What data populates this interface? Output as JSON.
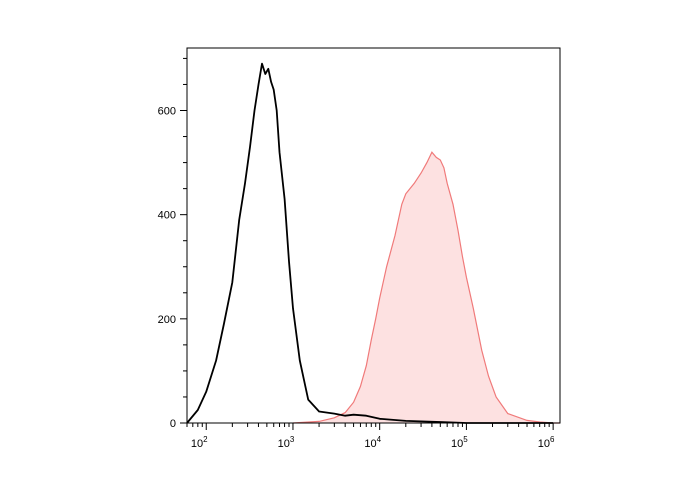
{
  "chart_data": {
    "type": "area",
    "title": "",
    "xlabel": "",
    "ylabel": "",
    "xscale": "log",
    "xlim": [
      60,
      1200000
    ],
    "ylim": [
      0,
      720
    ],
    "grid": false,
    "x_ticks": [
      {
        "value": 100,
        "base": "10",
        "exp": "2"
      },
      {
        "value": 1000,
        "base": "10",
        "exp": "3"
      },
      {
        "value": 10000,
        "base": "10",
        "exp": "4"
      },
      {
        "value": 100000,
        "base": "10",
        "exp": "5"
      },
      {
        "value": 1000000,
        "base": "10",
        "exp": "6"
      }
    ],
    "y_ticks": [
      {
        "value": 0,
        "label": "0"
      },
      {
        "value": 200,
        "label": "200"
      },
      {
        "value": 400,
        "label": "400"
      },
      {
        "value": 600,
        "label": "600"
      }
    ],
    "series": [
      {
        "style": "line",
        "color": "#000000",
        "x": [
          60,
          80,
          100,
          130,
          160,
          200,
          240,
          280,
          320,
          360,
          400,
          440,
          480,
          520,
          560,
          600,
          650,
          700,
          800,
          900,
          1000,
          1200,
          1500,
          2000,
          3000,
          4000,
          5000,
          7000,
          10000,
          20000,
          50000,
          100000,
          200000,
          1000000
        ],
        "y": [
          0,
          25,
          60,
          120,
          190,
          270,
          390,
          460,
          530,
          600,
          650,
          690,
          670,
          680,
          655,
          640,
          600,
          520,
          430,
          310,
          220,
          120,
          45,
          22,
          18,
          14,
          16,
          14,
          8,
          4,
          2,
          0,
          0,
          0
        ]
      },
      {
        "style": "filled",
        "color": "#f07a7a",
        "fill": "#fde1e1",
        "x": [
          1000,
          2000,
          3000,
          4000,
          5000,
          6000,
          7000,
          8000,
          9000,
          10000,
          12000,
          15000,
          18000,
          20000,
          25000,
          30000,
          35000,
          40000,
          45000,
          50000,
          55000,
          60000,
          70000,
          80000,
          90000,
          100000,
          120000,
          150000,
          180000,
          220000,
          300000,
          500000,
          700000,
          1000000,
          1200000
        ],
        "y": [
          0,
          3,
          10,
          20,
          40,
          70,
          110,
          160,
          200,
          240,
          300,
          360,
          420,
          440,
          460,
          480,
          500,
          520,
          510,
          505,
          490,
          460,
          420,
          370,
          320,
          280,
          220,
          140,
          90,
          50,
          18,
          5,
          2,
          0,
          0
        ]
      }
    ]
  }
}
